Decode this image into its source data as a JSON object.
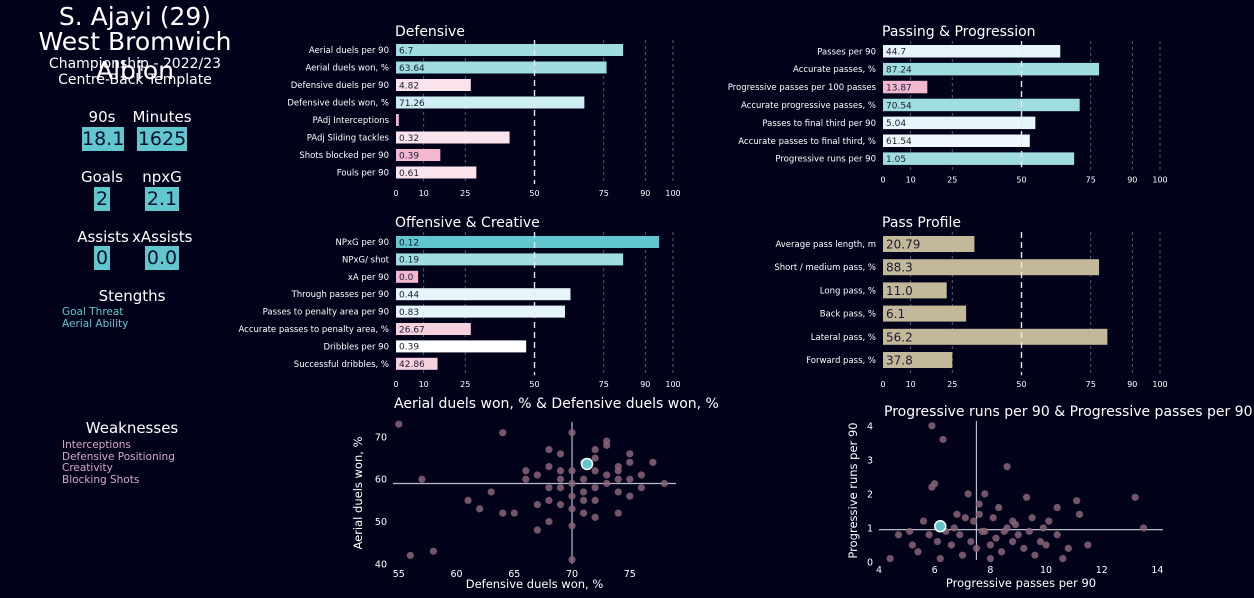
{
  "profile": {
    "name": "S. Ajayi (29)",
    "team": "West Bromwich Albion",
    "competition": "Championship - 2022/23",
    "template": "Centre-Back Template",
    "stats": [
      {
        "label": "90s",
        "value": "18.1"
      },
      {
        "label": "Minutes",
        "value": "1625"
      },
      {
        "label": "Goals",
        "value": "2"
      },
      {
        "label": "npxG",
        "value": "2.1"
      },
      {
        "label": "Assists",
        "value": "0"
      },
      {
        "label": "xAssists",
        "value": "0.0"
      }
    ],
    "strengths_title": "Stengths",
    "strengths": [
      "Goal Threat",
      "Aerial Ability"
    ],
    "weaknesses_title": "Weaknesses",
    "weaknesses": [
      "Interceptions",
      "Defensive Positioning",
      "Creativity",
      "Blocking Shots"
    ]
  },
  "colors": {
    "background": "#02031a",
    "teal": "#62c6cf",
    "teal_mid": "#9fdde3",
    "teal_light": "#cdeef2",
    "pale": "#eef7fb",
    "pink_light": "#fbe3ee",
    "pink": "#f2b8cf",
    "tan": "#c4b89a",
    "scatter_point": "#8a6478",
    "highlight": "#62c6cf",
    "strength_text": "#62c6cf",
    "weakness_text": "#d9a7c7"
  },
  "chart_data": [
    {
      "type": "bar",
      "orientation": "horizontal",
      "title": "Defensive",
      "xlim": [
        0,
        100
      ],
      "xticks": [
        0,
        10,
        25,
        50,
        75,
        90,
        100
      ],
      "reference_line": 50,
      "categories": [
        "Aerial duels per 90",
        "Aerial duels won, %",
        "Defensive duels per 90",
        "Defensive duels won, %",
        "PAdj Interceptions",
        "PAdj Sliding tackles",
        "Shots blocked per 90",
        "Fouls per 90"
      ],
      "percentiles": [
        82,
        76,
        27,
        68,
        1,
        41,
        16,
        29
      ],
      "value_labels": [
        "6.7",
        "63.64",
        "4.82",
        "71.26",
        "",
        "0.32",
        "0.39",
        "0.61"
      ],
      "bar_colors": [
        "#9fdde3",
        "#9fdde3",
        "#fbe3ee",
        "#cdeef2",
        "#f2b8cf",
        "#fbe3ee",
        "#f2b8cf",
        "#fbe3ee"
      ]
    },
    {
      "type": "bar",
      "orientation": "horizontal",
      "title": "Passing & Progression",
      "xlim": [
        0,
        100
      ],
      "xticks": [
        0,
        10,
        25,
        50,
        75,
        90,
        100
      ],
      "reference_line": 50,
      "categories": [
        "Passes per 90",
        "Accurate passes, %",
        "Progressive passes per 100 passes",
        "Accurate progressive passes, %",
        "Passes to final third per 90",
        "Accurate passes to final third, %",
        "Progressive runs per 90"
      ],
      "percentiles": [
        64,
        78,
        16,
        71,
        55,
        53,
        69
      ],
      "value_labels": [
        "44.7",
        "87.24",
        "13.87",
        "70.54",
        "5.04",
        "61.54",
        "1.05"
      ],
      "bar_colors": [
        "#e5f5f9",
        "#9fdde3",
        "#f2b8cf",
        "#9fdde3",
        "#e5f5f9",
        "#eef7fb",
        "#9fdde3"
      ]
    },
    {
      "type": "bar",
      "orientation": "horizontal",
      "title": "Offensive & Creative",
      "xlim": [
        0,
        100
      ],
      "xticks": [
        0,
        10,
        25,
        50,
        75,
        90,
        100
      ],
      "reference_line": 50,
      "categories": [
        "NPxG per 90",
        "NPxG/ shot",
        "xA per 90",
        "Through passes per 90",
        "Passes to penalty area per 90",
        "Accurate passes to penalty area, %",
        "Dribbles per 90",
        "Successful dribbles, %"
      ],
      "percentiles": [
        95,
        82,
        8,
        63,
        61,
        27,
        47,
        15
      ],
      "value_labels": [
        "0.12",
        "0.19",
        "0.0",
        "0.44",
        "0.83",
        "26.67",
        "0.39",
        "42.86"
      ],
      "bar_colors": [
        "#62c6cf",
        "#9fdde3",
        "#f2b8cf",
        "#e5f5f9",
        "#e5f5f9",
        "#f7d0e0",
        "#ffffff",
        "#f7d0e0"
      ]
    },
    {
      "type": "bar",
      "orientation": "horizontal",
      "title": "Pass Profile",
      "xlim": [
        0,
        100
      ],
      "xticks": [
        0,
        10,
        25,
        50,
        75,
        90,
        100
      ],
      "reference_line": 50,
      "categories": [
        "Average pass length, m",
        "Short / medium pass, %",
        "Long pass, %",
        "Back pass, %",
        "Lateral pass, %",
        "Forward pass, %"
      ],
      "percentiles": [
        33,
        78,
        23,
        30,
        81,
        25
      ],
      "value_labels": [
        "20.79",
        "88.3",
        "11.0",
        "6.1",
        "56.2",
        "37.8"
      ],
      "bar_colors": [
        "#c4b89a",
        "#c4b89a",
        "#c4b89a",
        "#c4b89a",
        "#c4b89a",
        "#c4b89a"
      ]
    },
    {
      "type": "scatter",
      "title": "Aerial duels won, % & Defensive duels won, %",
      "xlabel": "Defensive duels won, %",
      "ylabel": "Aerial duels won, %",
      "xlim": [
        54.5,
        79
      ],
      "ylim": [
        39.5,
        74
      ],
      "xticks": [
        55,
        60,
        65,
        70,
        75
      ],
      "yticks": [
        40,
        50,
        60,
        70
      ],
      "reference": {
        "x": 70,
        "y": 59
      },
      "highlight": {
        "x": 71.3,
        "y": 63.6
      },
      "points": [
        [
          55,
          73
        ],
        [
          57,
          60
        ],
        [
          56,
          42
        ],
        [
          58,
          43
        ],
        [
          62,
          53
        ],
        [
          63,
          57
        ],
        [
          64,
          71
        ],
        [
          64,
          52
        ],
        [
          65,
          52
        ],
        [
          66,
          62
        ],
        [
          66,
          60
        ],
        [
          67,
          61
        ],
        [
          67,
          48
        ],
        [
          67,
          54
        ],
        [
          68,
          58
        ],
        [
          68,
          55
        ],
        [
          68,
          50
        ],
        [
          68,
          63
        ],
        [
          69,
          62
        ],
        [
          69,
          54
        ],
        [
          69,
          66
        ],
        [
          69,
          58
        ],
        [
          70,
          71
        ],
        [
          70,
          62
        ],
        [
          70,
          59
        ],
        [
          70,
          56
        ],
        [
          70,
          53
        ],
        [
          70,
          49
        ],
        [
          70,
          41
        ],
        [
          71,
          64
        ],
        [
          71,
          60
        ],
        [
          71,
          57
        ],
        [
          71,
          55
        ],
        [
          71,
          52
        ],
        [
          72,
          62
        ],
        [
          72,
          58
        ],
        [
          72,
          55
        ],
        [
          72,
          67
        ],
        [
          73,
          61
        ],
        [
          73,
          59
        ],
        [
          73,
          68
        ],
        [
          74,
          57
        ],
        [
          74,
          63
        ],
        [
          74,
          60
        ],
        [
          74,
          62
        ],
        [
          75,
          64
        ],
        [
          75,
          60
        ],
        [
          75,
          56
        ],
        [
          75,
          66
        ],
        [
          76,
          58
        ],
        [
          77,
          64
        ],
        [
          78,
          59
        ],
        [
          73,
          69
        ],
        [
          72,
          65
        ],
        [
          69,
          60
        ],
        [
          68,
          67
        ],
        [
          76,
          61
        ],
        [
          61,
          55
        ],
        [
          74,
          52
        ],
        [
          72,
          51
        ]
      ]
    },
    {
      "type": "scatter",
      "title": "Progressive runs per 90 & Progressive passes per 90",
      "xlabel": "Progressive passes per 90",
      "ylabel": "Progressive runs per 90",
      "xlim": [
        4,
        14.2
      ],
      "ylim": [
        0,
        4.2
      ],
      "xticks": [
        4,
        6,
        8,
        10,
        12,
        14
      ],
      "yticks": [
        0,
        1,
        2,
        3,
        4
      ],
      "reference": {
        "x": 7.5,
        "y": 0.95
      },
      "highlight": {
        "x": 6.2,
        "y": 1.05
      },
      "points": [
        [
          5.9,
          4.0
        ],
        [
          6.3,
          3.6
        ],
        [
          6.0,
          2.3
        ],
        [
          5.9,
          2.2
        ],
        [
          8.6,
          2.8
        ],
        [
          7.2,
          2.0
        ],
        [
          7.8,
          2.0
        ],
        [
          9.3,
          1.9
        ],
        [
          11.1,
          1.8
        ],
        [
          13.2,
          1.9
        ],
        [
          7.6,
          1.7
        ],
        [
          8.3,
          1.6
        ],
        [
          10.4,
          1.6
        ],
        [
          6.8,
          1.4
        ],
        [
          7.1,
          1.3
        ],
        [
          7.6,
          1.4
        ],
        [
          8.1,
          1.3
        ],
        [
          8.8,
          1.2
        ],
        [
          9.5,
          1.3
        ],
        [
          10.1,
          1.2
        ],
        [
          11.2,
          1.4
        ],
        [
          13.5,
          1.0
        ],
        [
          5.6,
          1.2
        ],
        [
          5.2,
          0.5
        ],
        [
          5.4,
          0.3
        ],
        [
          5.8,
          0.8
        ],
        [
          6.1,
          0.6
        ],
        [
          6.4,
          0.9
        ],
        [
          6.6,
          0.5
        ],
        [
          6.9,
          0.8
        ],
        [
          7.0,
          0.2
        ],
        [
          7.3,
          0.6
        ],
        [
          7.5,
          0.4
        ],
        [
          7.8,
          0.9
        ],
        [
          8.0,
          0.5
        ],
        [
          8.2,
          0.7
        ],
        [
          8.4,
          0.3
        ],
        [
          8.6,
          1.0
        ],
        [
          8.8,
          0.6
        ],
        [
          9.0,
          0.8
        ],
        [
          9.2,
          0.4
        ],
        [
          9.4,
          0.9
        ],
        [
          9.6,
          0.2
        ],
        [
          9.8,
          0.6
        ],
        [
          10.0,
          0.5
        ],
        [
          10.4,
          0.8
        ],
        [
          10.8,
          0.4
        ],
        [
          11.5,
          0.5
        ],
        [
          4.4,
          0.1
        ],
        [
          4.7,
          0.8
        ],
        [
          5.1,
          0.9
        ],
        [
          6.7,
          1.0
        ],
        [
          7.4,
          1.2
        ],
        [
          8.9,
          1.1
        ],
        [
          9.9,
          1.0
        ],
        [
          10.6,
          0.1
        ],
        [
          6.2,
          0.1
        ],
        [
          8.0,
          0.1
        ],
        [
          7.7,
          0.9
        ],
        [
          8.5,
          0.9
        ]
      ]
    }
  ]
}
